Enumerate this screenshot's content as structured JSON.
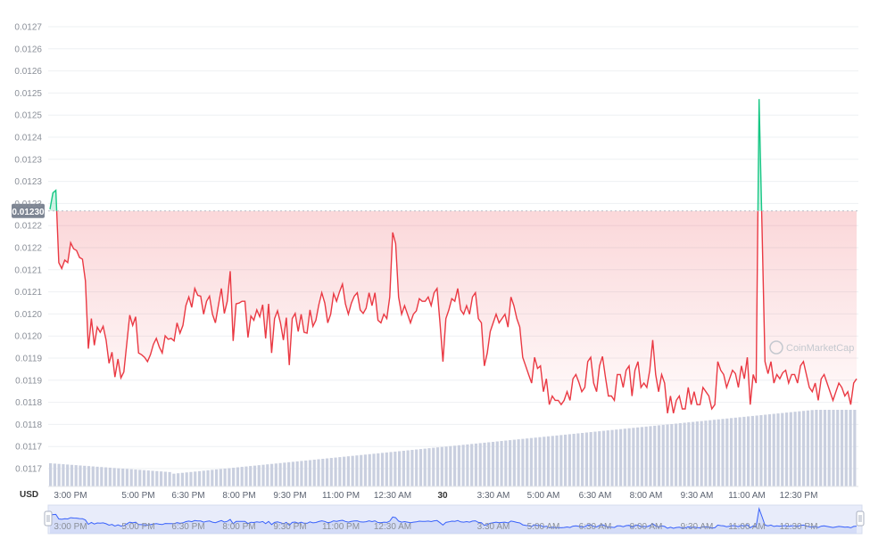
{
  "chart_data": {
    "type": "line",
    "title": "",
    "currency_label": "USD",
    "watermark": "CoinMarketCap",
    "current_price_label": "0.01230",
    "current_price": 0.0123,
    "y_ticks": [
      "0.0127",
      "0.0126",
      "0.0126",
      "0.0125",
      "0.0125",
      "0.0124",
      "0.0123",
      "0.0123",
      "0.0123",
      "0.0122",
      "0.0122",
      "0.0121",
      "0.0121",
      "0.0120",
      "0.0120",
      "0.0119",
      "0.0119",
      "0.0118",
      "0.0118",
      "0.0117",
      "0.0117"
    ],
    "ylim": [
      0.01166,
      0.012728
    ],
    "x_ticks": [
      "3:00 PM",
      "5:00 PM",
      "6:30 PM",
      "8:00 PM",
      "9:30 PM",
      "11:00 PM",
      "12:30 AM",
      "30",
      "3:30 AM",
      "5:00 AM",
      "6:30 AM",
      "8:00 AM",
      "9:30 AM",
      "11:00 AM",
      "12:30 PM"
    ],
    "nav_ticks": [
      "3:00 PM",
      "5:00 PM",
      "6:30 PM",
      "8:00 PM",
      "9:30 PM",
      "11:00 PM",
      "12:30 AM",
      "3:30 AM",
      "5:00 AM",
      "6:30 AM",
      "8:00 AM",
      "9:30 AM",
      "11:00 AM",
      "12:30 PM"
    ],
    "colors": {
      "up": "#16c784",
      "down": "#ea3943",
      "volume": "#c9cfdf",
      "navigator": "#3861fb"
    },
    "series": [
      {
        "values": [
          0.012304,
          0.012342,
          0.012348,
          0.01218,
          0.012166,
          0.012186,
          0.01218,
          0.012226,
          0.012212,
          0.012208,
          0.012192,
          0.012188,
          0.012138,
          0.01198,
          0.01205,
          0.011988,
          0.01203,
          0.012018,
          0.012032,
          0.012,
          0.011946,
          0.011972,
          0.011914,
          0.011956,
          0.011912,
          0.011926,
          0.011992,
          0.012058,
          0.012034,
          0.012054,
          0.01197,
          0.011966,
          0.01196,
          0.01195,
          0.011966,
          0.01199,
          0.012004,
          0.011984,
          0.01197,
          0.01201,
          0.012002,
          0.012004,
          0.011998,
          0.01204,
          0.012016,
          0.012034,
          0.01208,
          0.0121,
          0.012076,
          0.01212,
          0.012104,
          0.012102,
          0.01206,
          0.01209,
          0.012102,
          0.01206,
          0.01204,
          0.01208,
          0.01212,
          0.012062,
          0.01209,
          0.01216,
          0.011998,
          0.012084,
          0.012086,
          0.01209,
          0.01209,
          0.012006,
          0.012056,
          0.012046,
          0.01207,
          0.012054,
          0.012082,
          0.012004,
          0.012084,
          0.01197,
          0.01205,
          0.012068,
          0.01204,
          0.012,
          0.012052,
          0.011942,
          0.01205,
          0.012062,
          0.01202,
          0.01206,
          0.012018,
          0.012016,
          0.01207,
          0.012032,
          0.012046,
          0.012082,
          0.01211,
          0.012086,
          0.01204,
          0.01206,
          0.012108,
          0.01209,
          0.012112,
          0.01213,
          0.012084,
          0.01206,
          0.012086,
          0.012102,
          0.01211,
          0.01207,
          0.012062,
          0.012074,
          0.01211,
          0.01208,
          0.01211,
          0.012046,
          0.01204,
          0.01206,
          0.01205,
          0.0121,
          0.01225,
          0.012224,
          0.0121,
          0.01206,
          0.01208,
          0.01206,
          0.01204,
          0.01206,
          0.012068,
          0.012096,
          0.01209,
          0.01209,
          0.0121,
          0.01208,
          0.01211,
          0.01212,
          0.01204,
          0.01195,
          0.01205,
          0.01207,
          0.012096,
          0.01209,
          0.01212,
          0.01207,
          0.01206,
          0.01208,
          0.01206,
          0.0121,
          0.01211,
          0.01205,
          0.01204,
          0.01194,
          0.01197,
          0.01202,
          0.01204,
          0.01206,
          0.01204,
          0.01205,
          0.01206,
          0.01203,
          0.0121,
          0.01208,
          0.01205,
          0.01203,
          0.01196,
          0.01194,
          0.01192,
          0.0119,
          0.01196,
          0.011934,
          0.01194,
          0.01188,
          0.01191,
          0.01185,
          0.01187,
          0.01186,
          0.01186,
          0.01185,
          0.01186,
          0.01188,
          0.01186,
          0.01191,
          0.01192,
          0.011902,
          0.01188,
          0.01189,
          0.01195,
          0.01196,
          0.0119,
          0.01188,
          0.01194,
          0.011962,
          0.011914,
          0.01187,
          0.01187,
          0.01186,
          0.01192,
          0.01192,
          0.01189,
          0.01193,
          0.01194,
          0.01187,
          0.01193,
          0.01195,
          0.01189,
          0.0119,
          0.01189,
          0.01193,
          0.012,
          0.01192,
          0.01188,
          0.01192,
          0.0119,
          0.01183,
          0.01187,
          0.01183,
          0.01186,
          0.01187,
          0.01184,
          0.01184,
          0.01189,
          0.01185,
          0.01188,
          0.01185,
          0.01185,
          0.01189,
          0.01188,
          0.01187,
          0.01184,
          0.01185,
          0.01195,
          0.01193,
          0.01192,
          0.01189,
          0.01191,
          0.01193,
          0.011922,
          0.01189,
          0.01194,
          0.01191,
          0.01196,
          0.01185,
          0.01192,
          0.0119,
          0.01256,
          0.01226,
          0.01195,
          0.011922,
          0.01195,
          0.0119,
          0.01192,
          0.01191,
          0.011924,
          0.01193,
          0.0119,
          0.01192,
          0.01192,
          0.0119,
          0.01194,
          0.01195,
          0.01192,
          0.01189,
          0.01188,
          0.0119,
          0.01186,
          0.01191,
          0.01192,
          0.0119,
          0.01188,
          0.01186,
          0.01188,
          0.0119,
          0.01189,
          0.01187,
          0.01188,
          0.01185,
          0.0119,
          0.01191
        ]
      }
    ]
  }
}
